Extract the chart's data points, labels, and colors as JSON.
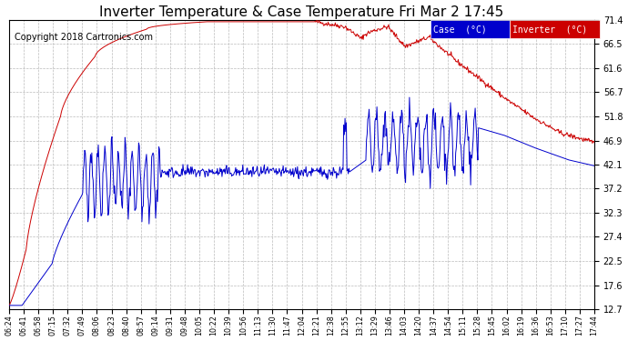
{
  "title": "Inverter Temperature & Case Temperature Fri Mar 2 17:45",
  "copyright": "Copyright 2018 Cartronics.com",
  "ylabel_right_ticks": [
    12.7,
    17.6,
    22.5,
    27.4,
    32.3,
    37.2,
    42.1,
    46.9,
    51.8,
    56.7,
    61.6,
    66.5,
    71.4
  ],
  "ylim": [
    12.7,
    71.4
  ],
  "x_labels": [
    "06:24",
    "06:41",
    "06:58",
    "07:15",
    "07:32",
    "07:49",
    "08:06",
    "08:23",
    "08:40",
    "08:57",
    "09:14",
    "09:31",
    "09:48",
    "10:05",
    "10:22",
    "10:39",
    "10:56",
    "11:13",
    "11:30",
    "11:47",
    "12:04",
    "12:21",
    "12:38",
    "12:55",
    "13:12",
    "13:29",
    "13:46",
    "14:03",
    "14:20",
    "14:37",
    "14:54",
    "15:11",
    "15:28",
    "15:45",
    "16:02",
    "16:19",
    "16:36",
    "16:53",
    "17:10",
    "17:27",
    "17:44"
  ],
  "background_color": "#ffffff",
  "plot_bg_color": "#ffffff",
  "grid_color": "#bbbbbb",
  "legend_case_bg": "#0000cc",
  "legend_inv_bg": "#cc0000",
  "legend_text_color": "#ffffff",
  "case_color": "#0000cc",
  "inverter_color": "#cc0000",
  "title_fontsize": 11,
  "copyright_fontsize": 7
}
